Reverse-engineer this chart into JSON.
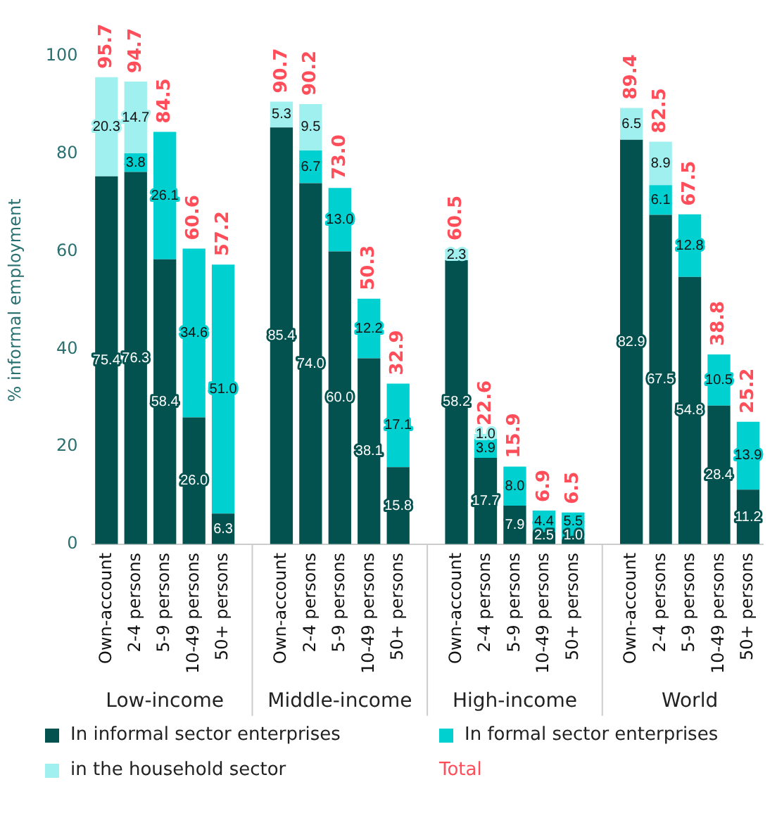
{
  "chart_data": {
    "type": "bar",
    "stacked": true,
    "ylabel": "% informal employment",
    "categories": [
      "Own-account",
      "2-4 persons",
      "5-9 persons",
      "10-49 persons",
      "50+ persons",
      null,
      "Own-account",
      "2-4 persons",
      "5-9 persons",
      "10-49 persons",
      "50+ persons",
      null,
      "Own-account",
      "2-4 persons",
      "5-9 persons",
      "10-49 persons",
      "50+ persons",
      null,
      "Own-account",
      "2-4 persons",
      "5-9 persons",
      "10-49 persons",
      "50+ persons"
    ],
    "series": [
      {
        "name": "In informal sector enterprises",
        "color": "#04524f",
        "values": [
          75.4,
          76.3,
          58.4,
          26.0,
          6.3,
          null,
          85.4,
          74.0,
          60.0,
          38.1,
          15.8,
          null,
          58.2,
          17.7,
          7.9,
          2.5,
          1.0,
          null,
          82.9,
          67.5,
          54.8,
          28.4,
          11.2
        ],
        "value_labels": [
          "75.4",
          "76.3",
          "58.4",
          "26.0",
          "6.3",
          null,
          "85.4",
          "74.0",
          "60.0",
          "38.1",
          "15.8",
          null,
          "58.2",
          "17.7",
          "7.9",
          "2.5",
          "1.0",
          null,
          "82.9",
          "67.5",
          "54.8",
          "28.4",
          "11.2"
        ]
      },
      {
        "name": "In formal sector enterprises",
        "color": "#00d0d0",
        "values": [
          null,
          3.8,
          26.1,
          34.6,
          51.0,
          null,
          null,
          6.7,
          13.0,
          12.2,
          17.1,
          null,
          null,
          3.9,
          8.0,
          4.4,
          5.5,
          null,
          null,
          6.1,
          12.8,
          10.5,
          13.9
        ],
        "value_labels": [
          null,
          "3.8",
          "26.1",
          "34.6",
          "51.0",
          null,
          null,
          "6.7",
          "13.0",
          "12.2",
          "17.1",
          null,
          null,
          "3.9",
          "8.0",
          "4.4",
          "5.5",
          null,
          null,
          "6.1",
          "12.8",
          "10.5",
          "13.9"
        ]
      },
      {
        "name": "in the household sector",
        "color": "#a0f0f0",
        "values": [
          20.3,
          14.7,
          null,
          null,
          null,
          null,
          5.3,
          9.5,
          null,
          null,
          null,
          null,
          2.3,
          1.0,
          null,
          null,
          null,
          null,
          6.5,
          8.9,
          null,
          null,
          null
        ],
        "value_labels": [
          "20.3",
          "14.7",
          null,
          null,
          null,
          null,
          "5.3",
          "9.5",
          null,
          null,
          null,
          null,
          "2.3",
          "1.0",
          null,
          null,
          null,
          null,
          "6.5",
          "8.9",
          null,
          null,
          null
        ]
      }
    ],
    "totals": [
      "95.7",
      "94.7",
      "84.5",
      "60.6",
      "57.2",
      null,
      "90.7",
      "90.2",
      "73.0",
      "50.3",
      "32.9",
      null,
      "60.5",
      "22.6",
      "15.9",
      "6.9",
      "6.5",
      null,
      "89.4",
      "82.5",
      "67.5",
      "38.8",
      "25.2"
    ],
    "annotations": [
      "Low-income",
      "Middle-income",
      "High-income",
      "World",
      "Total"
    ],
    "ylim": [
      0,
      100
    ],
    "yticks": [
      0,
      20,
      40,
      60,
      80,
      100
    ],
    "grid": false,
    "legend": "bottom"
  }
}
